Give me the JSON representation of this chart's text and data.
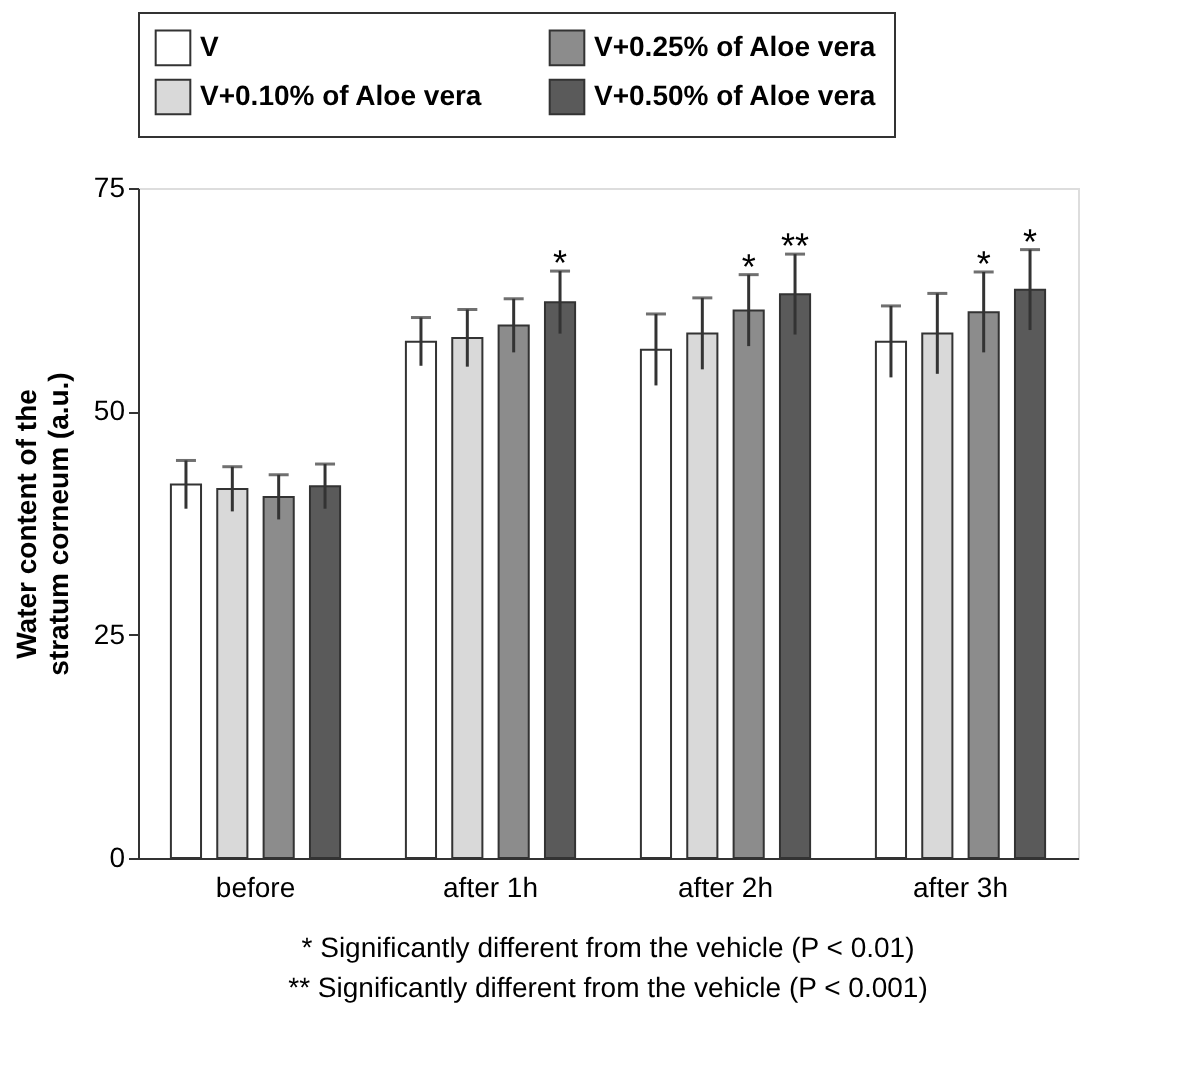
{
  "chart_data": {
    "type": "bar",
    "categories": [
      "before",
      "after 1h",
      "after 2h",
      "after 3h"
    ],
    "ylabel": "Water content of the stratum corneum (a.u.)",
    "series": [
      {
        "name": "V",
        "color": "#ffffff",
        "values": [
          41.8,
          57.8,
          56.9,
          57.8
        ],
        "errors": [
          2.7,
          2.7,
          4,
          4
        ]
      },
      {
        "name": "V+0.10% of Aloe vera",
        "color": "#d9d9d9",
        "values": [
          41.3,
          58.2,
          58.7,
          58.7
        ],
        "errors": [
          2.5,
          3.2,
          4,
          4.5
        ]
      },
      {
        "name": "V+0.25% of Aloe vera",
        "color": "#8c8c8c",
        "values": [
          40.4,
          59.6,
          61.3,
          61.1
        ],
        "errors": [
          2.5,
          3,
          4,
          4.5
        ],
        "value_labels": [
          null,
          null,
          "*",
          "*"
        ]
      },
      {
        "name": "V+0.50% of Aloe vera",
        "color": "#5a5a5a",
        "values": [
          41.6,
          62.2,
          63.1,
          63.6
        ],
        "errors": [
          2.5,
          3.5,
          4.5,
          4.5
        ],
        "value_labels": [
          null,
          "*",
          "**",
          "*"
        ]
      }
    ],
    "ylim": [
      0,
      75
    ],
    "yticks": [
      0,
      25,
      50,
      75
    ],
    "grid": false,
    "legend": "top",
    "annotations": [
      "* Significantly different from the vehicle (P < 0.01)",
      "** Significantly different from the vehicle (P < 0.001)"
    ]
  }
}
